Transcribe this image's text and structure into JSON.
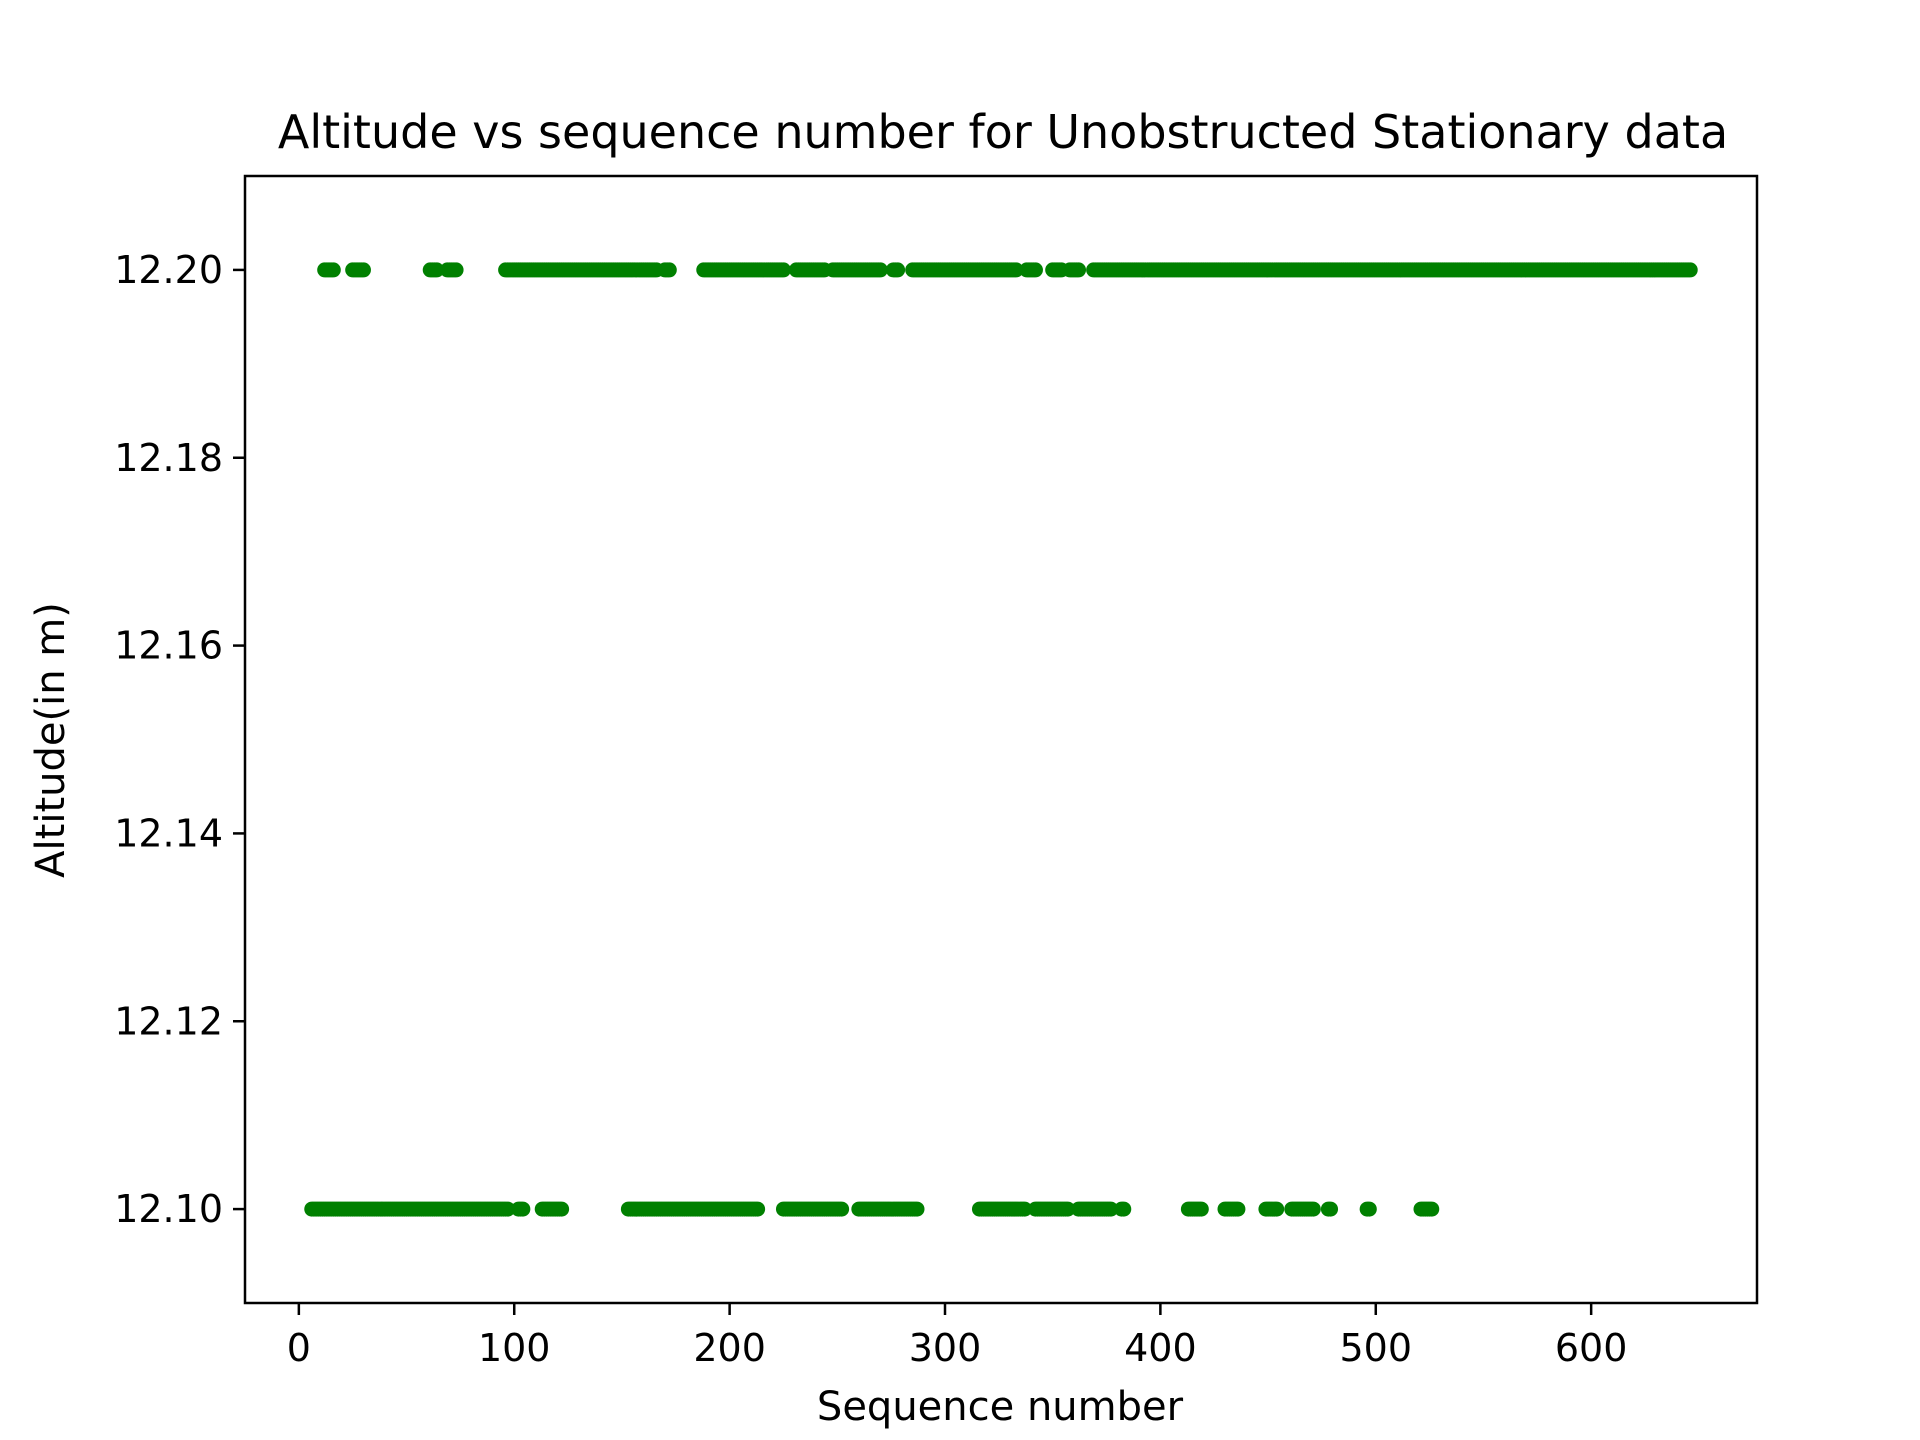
{
  "chart_data": {
    "type": "scatter",
    "title": "Altitude vs sequence number for Unobstructed Stationary data",
    "xlabel": "Sequence number",
    "ylabel": "Altitude(in m)",
    "xlim": [
      -25,
      677
    ],
    "ylim": [
      12.09,
      12.21
    ],
    "xticks": [
      0,
      100,
      200,
      300,
      400,
      500,
      600
    ],
    "yticks": [
      12.1,
      12.12,
      12.14,
      12.16,
      12.18,
      12.2
    ],
    "ytick_decimals": 2,
    "grid": false,
    "legend": "none",
    "color": "#008000",
    "series": [
      {
        "y": 12.2,
        "x_runs": [
          [
            12,
            16
          ],
          [
            25,
            30
          ],
          [
            61,
            64
          ],
          [
            69,
            73
          ],
          [
            96,
            166
          ],
          [
            170,
            172
          ],
          [
            188,
            225
          ],
          [
            231,
            244
          ],
          [
            248,
            270
          ],
          [
            276,
            278
          ],
          [
            285,
            333
          ],
          [
            338,
            342
          ],
          [
            350,
            354
          ],
          [
            358,
            362
          ],
          [
            369,
            646
          ]
        ]
      },
      {
        "y": 12.1,
        "x_runs": [
          [
            6,
            97
          ],
          [
            102,
            104
          ],
          [
            113,
            122
          ],
          [
            153,
            213
          ],
          [
            225,
            252
          ],
          [
            260,
            287
          ],
          [
            316,
            337
          ],
          [
            342,
            357
          ],
          [
            362,
            377
          ],
          [
            382,
            383
          ],
          [
            413,
            419
          ],
          [
            430,
            436
          ],
          [
            449,
            454
          ],
          [
            461,
            471
          ],
          [
            478,
            479
          ],
          [
            496,
            497
          ],
          [
            521,
            526
          ]
        ]
      }
    ]
  }
}
